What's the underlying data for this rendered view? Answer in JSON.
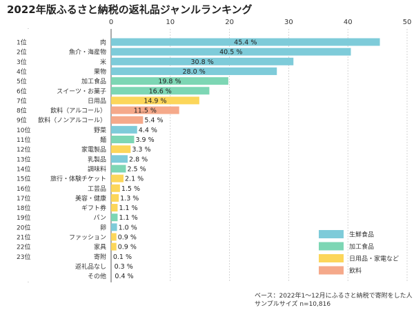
{
  "title": "2022年版ふるさと納税の返礼品ジャンルランキング",
  "note": {
    "line1": "ベース：2022年1〜12月にふるさと納税で寄附をした人",
    "line2": "サンプルサイズ n=10,816"
  },
  "colors": {
    "fresh": "#7ecbd9",
    "processed": "#7dd6b4",
    "daily": "#fcd65a",
    "drink": "#f5a98a"
  },
  "chart_data": {
    "type": "bar",
    "orientation": "horizontal",
    "x_ticks": [
      0,
      10,
      20,
      30,
      40,
      50
    ],
    "xlim": [
      0,
      50
    ],
    "grid": true,
    "legend_position": "bottom-right",
    "categories": [
      "肉",
      "魚介・海産物",
      "米",
      "果物",
      "加工食品",
      "スイーツ・お菓子",
      "日用品",
      "飲料（アルコール）",
      "飲料（ノンアルコール）",
      "野菜",
      "麺",
      "家電製品",
      "乳製品",
      "調味料",
      "旅行・体験チケット",
      "工芸品",
      "美容・健康",
      "ギフト券",
      "パン",
      "卵",
      "ファッション",
      "家具",
      "寄附",
      "返礼品なし",
      "その他"
    ],
    "ranks": [
      "1位",
      "2位",
      "3位",
      "4位",
      "5位",
      "6位",
      "7位",
      "8位",
      "9位",
      "10位",
      "11位",
      "12位",
      "13位",
      "14位",
      "15位",
      "16位",
      "17位",
      "18位",
      "19位",
      "20位",
      "21位",
      "22位",
      "23位",
      "",
      ""
    ],
    "values": [
      45.4,
      40.5,
      30.8,
      28.0,
      19.8,
      16.6,
      14.9,
      11.5,
      5.4,
      4.4,
      3.9,
      3.3,
      2.8,
      2.5,
      2.1,
      1.5,
      1.3,
      1.1,
      1.1,
      1.0,
      0.9,
      0.9,
      0.1,
      0.3,
      0.4
    ],
    "value_labels": [
      "45.4 %",
      "40.5 %",
      "30.8 %",
      "28.0 %",
      "19.8 %",
      "16.6 %",
      "14.9 %",
      "11.5 %",
      "5.4 %",
      "4.4 %",
      "3.9 %",
      "3.3 %",
      "2.8 %",
      "2.5 %",
      "2.1 %",
      "1.5 %",
      "1.3 %",
      "1.1 %",
      "1.1 %",
      "1.0 %",
      "0.9 %",
      "0.9 %",
      "0.1 %",
      "0.3 %",
      "0.4 %"
    ],
    "groups": [
      "fresh",
      "fresh",
      "fresh",
      "fresh",
      "processed",
      "processed",
      "daily",
      "drink",
      "drink",
      "fresh",
      "processed",
      "daily",
      "fresh",
      "processed",
      "daily",
      "daily",
      "daily",
      "daily",
      "processed",
      "fresh",
      "daily",
      "daily",
      "none",
      "none",
      "none"
    ],
    "legend": [
      {
        "key": "fresh",
        "label": "生鮮食品"
      },
      {
        "key": "processed",
        "label": "加工食品"
      },
      {
        "key": "daily",
        "label": "日用品・家電など"
      },
      {
        "key": "drink",
        "label": "飲料"
      }
    ]
  }
}
